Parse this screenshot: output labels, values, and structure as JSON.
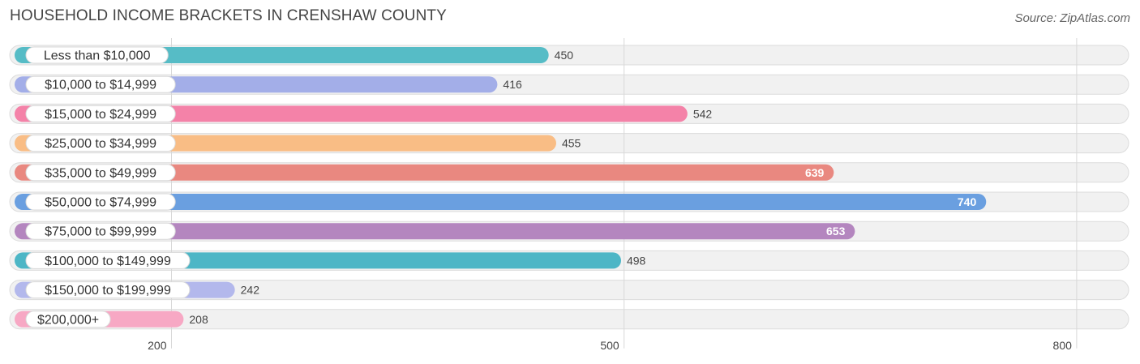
{
  "header": {
    "title": "HOUSEHOLD INCOME BRACKETS IN CRENSHAW COUNTY",
    "source": "Source: ZipAtlas.com"
  },
  "chart_data": {
    "type": "bar",
    "orientation": "horizontal",
    "title": "HOUSEHOLD INCOME BRACKETS IN CRENSHAW COUNTY",
    "categories": [
      "Less than $10,000",
      "$10,000 to $14,999",
      "$15,000 to $24,999",
      "$25,000 to $34,999",
      "$35,000 to $49,999",
      "$50,000 to $74,999",
      "$75,000 to $99,999",
      "$100,000 to $149,999",
      "$150,000 to $199,999",
      "$200,000+"
    ],
    "values": [
      450,
      416,
      542,
      455,
      639,
      740,
      653,
      498,
      242,
      208
    ],
    "colors": [
      "#56bcc6",
      "#a3aee8",
      "#f482a8",
      "#f9bd85",
      "#e98880",
      "#6a9fe0",
      "#b486bf",
      "#4db6c6",
      "#b3b8ec",
      "#f7a8c4"
    ],
    "value_labels": [
      "450",
      "416",
      "542",
      "455",
      "639",
      "740",
      "653",
      "498",
      "242",
      "208"
    ],
    "xticks": [
      200,
      500,
      800
    ],
    "xtick_labels": [
      "200",
      "500",
      "800"
    ],
    "xlim": [
      96,
      828
    ],
    "grid": true
  }
}
